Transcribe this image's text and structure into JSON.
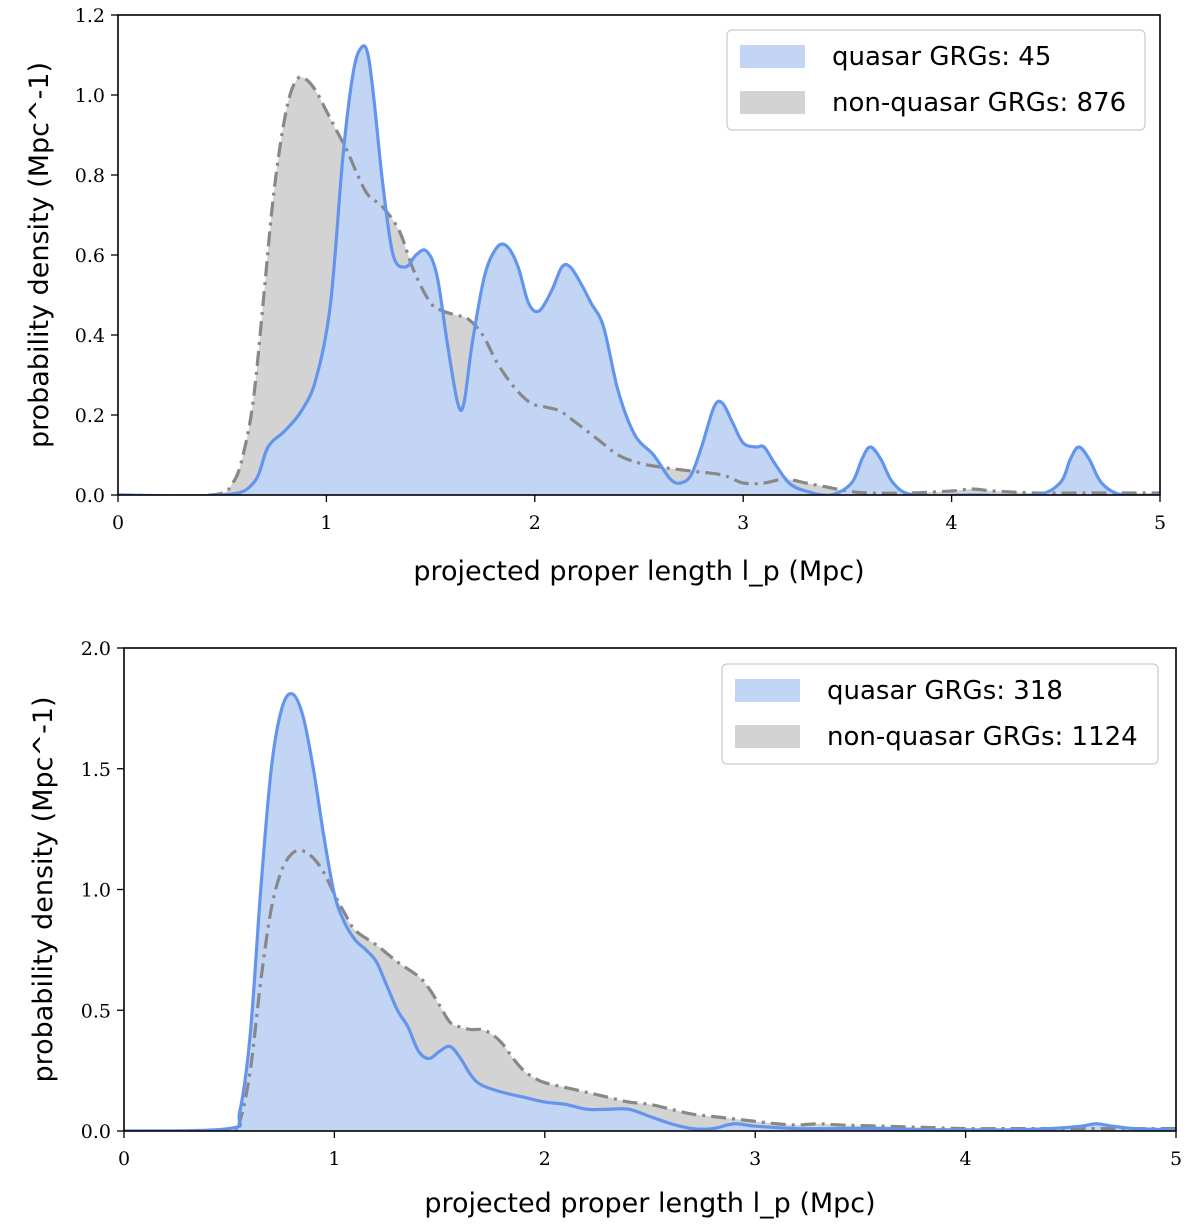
{
  "chart_data": [
    {
      "type": "area",
      "xlabel": "projected proper length l_p (Mpc)",
      "ylabel": "probability density (Mpc^-1)",
      "xlim": [
        0,
        5
      ],
      "ylim": [
        0,
        1.2
      ],
      "xticks": [
        "0",
        "1",
        "2",
        "3",
        "4",
        "5"
      ],
      "yticks": [
        "0.0",
        "0.2",
        "0.4",
        "0.6",
        "0.8",
        "1.0",
        "1.2"
      ],
      "grid": false,
      "legend_position": "top-right",
      "series": [
        {
          "name": "quasar GRGs: 45",
          "color": "#6495ed",
          "fill": "#c3d5f5",
          "line_style": "solid",
          "x": [
            0,
            0.5,
            0.65,
            0.72,
            0.8,
            0.88,
            0.95,
            1.02,
            1.08,
            1.13,
            1.17,
            1.2,
            1.23,
            1.27,
            1.32,
            1.38,
            1.43,
            1.48,
            1.53,
            1.58,
            1.63,
            1.66,
            1.7,
            1.76,
            1.82,
            1.87,
            1.92,
            1.97,
            2.02,
            2.08,
            2.13,
            2.17,
            2.22,
            2.27,
            2.33,
            2.4,
            2.48,
            2.57,
            2.65,
            2.7,
            2.75,
            2.8,
            2.86,
            2.9,
            2.95,
            3.0,
            3.06,
            3.1,
            3.15,
            3.22,
            3.3,
            3.42,
            3.52,
            3.57,
            3.61,
            3.66,
            3.72,
            3.82,
            4.1,
            4.4,
            4.52,
            4.57,
            4.61,
            4.66,
            4.72,
            4.82,
            5.0
          ],
          "y": [
            0,
            0.0,
            0.03,
            0.12,
            0.16,
            0.21,
            0.29,
            0.48,
            0.85,
            1.06,
            1.12,
            1.1,
            0.98,
            0.78,
            0.6,
            0.57,
            0.6,
            0.61,
            0.55,
            0.38,
            0.23,
            0.23,
            0.38,
            0.55,
            0.62,
            0.62,
            0.57,
            0.48,
            0.46,
            0.51,
            0.57,
            0.57,
            0.53,
            0.48,
            0.42,
            0.26,
            0.15,
            0.1,
            0.04,
            0.03,
            0.05,
            0.12,
            0.22,
            0.23,
            0.18,
            0.13,
            0.12,
            0.12,
            0.08,
            0.03,
            0.01,
            0.0,
            0.03,
            0.09,
            0.12,
            0.09,
            0.03,
            0.0,
            0.0,
            0.0,
            0.03,
            0.09,
            0.12,
            0.09,
            0.03,
            0.0,
            0.0
          ]
        },
        {
          "name": "non-quasar GRGs: 876",
          "color": "#888888",
          "fill": "#d3d3d3",
          "line_style": "dash-dot",
          "x": [
            0,
            0.45,
            0.55,
            0.6,
            0.65,
            0.7,
            0.74,
            0.78,
            0.82,
            0.86,
            0.9,
            0.95,
            1.0,
            1.05,
            1.1,
            1.15,
            1.2,
            1.27,
            1.35,
            1.42,
            1.5,
            1.56,
            1.62,
            1.68,
            1.75,
            1.82,
            1.9,
            1.98,
            2.05,
            2.12,
            2.2,
            2.3,
            2.4,
            2.5,
            2.6,
            2.75,
            2.9,
            3.0,
            3.1,
            3.2,
            3.3,
            3.4,
            3.5,
            3.6,
            3.8,
            4.0,
            4.1,
            4.2,
            4.4,
            4.6,
            5.0
          ],
          "y": [
            0,
            0.0,
            0.03,
            0.1,
            0.24,
            0.5,
            0.72,
            0.88,
            0.99,
            1.04,
            1.04,
            1.01,
            0.96,
            0.91,
            0.86,
            0.8,
            0.75,
            0.72,
            0.66,
            0.56,
            0.48,
            0.46,
            0.45,
            0.44,
            0.4,
            0.33,
            0.27,
            0.23,
            0.22,
            0.21,
            0.18,
            0.14,
            0.1,
            0.08,
            0.07,
            0.06,
            0.05,
            0.03,
            0.03,
            0.04,
            0.03,
            0.02,
            0.01,
            0.005,
            0.005,
            0.01,
            0.015,
            0.01,
            0.005,
            0.005,
            0.005
          ]
        }
      ]
    },
    {
      "type": "area",
      "xlabel": "projected proper length l_p (Mpc)",
      "ylabel": "probability density (Mpc^-1)",
      "xlim": [
        0,
        5
      ],
      "ylim": [
        0,
        2.0
      ],
      "xticks": [
        "0",
        "1",
        "2",
        "3",
        "4",
        "5"
      ],
      "yticks": [
        "0.0",
        "0.5",
        "1.0",
        "1.5",
        "2.0"
      ],
      "grid": false,
      "legend_position": "top-right",
      "series": [
        {
          "name": "quasar GRGs: 318",
          "color": "#6495ed",
          "fill": "#c3d5f5",
          "line_style": "solid",
          "x": [
            0,
            0.5,
            0.55,
            0.6,
            0.65,
            0.7,
            0.75,
            0.8,
            0.85,
            0.9,
            0.95,
            1.0,
            1.05,
            1.1,
            1.15,
            1.2,
            1.25,
            1.3,
            1.35,
            1.4,
            1.45,
            1.5,
            1.55,
            1.6,
            1.65,
            1.7,
            1.8,
            1.9,
            2.0,
            2.1,
            2.2,
            2.3,
            2.4,
            2.5,
            2.6,
            2.7,
            2.8,
            2.9,
            3.0,
            3.2,
            3.4,
            3.6,
            3.8,
            4.0,
            4.2,
            4.4,
            4.55,
            4.62,
            4.7,
            4.8,
            5.0
          ],
          "y": [
            0,
            0.01,
            0.08,
            0.4,
            1.0,
            1.5,
            1.75,
            1.81,
            1.72,
            1.5,
            1.22,
            0.98,
            0.86,
            0.79,
            0.75,
            0.7,
            0.6,
            0.5,
            0.43,
            0.33,
            0.3,
            0.33,
            0.35,
            0.3,
            0.23,
            0.19,
            0.16,
            0.14,
            0.12,
            0.11,
            0.09,
            0.09,
            0.09,
            0.06,
            0.03,
            0.01,
            0.01,
            0.03,
            0.02,
            0.01,
            0.01,
            0.01,
            0.005,
            0.005,
            0.005,
            0.01,
            0.02,
            0.03,
            0.02,
            0.01,
            0.005
          ]
        },
        {
          "name": "non-quasar GRGs: 1124",
          "color": "#888888",
          "fill": "#d3d3d3",
          "line_style": "dash-dot",
          "x": [
            0,
            0.5,
            0.55,
            0.6,
            0.65,
            0.7,
            0.75,
            0.8,
            0.85,
            0.9,
            0.95,
            1.0,
            1.05,
            1.1,
            1.2,
            1.3,
            1.4,
            1.45,
            1.5,
            1.55,
            1.6,
            1.65,
            1.7,
            1.75,
            1.8,
            1.85,
            1.9,
            1.95,
            2.0,
            2.1,
            2.2,
            2.3,
            2.4,
            2.5,
            2.6,
            2.7,
            2.8,
            2.9,
            3.0,
            3.1,
            3.2,
            3.3,
            3.4,
            3.6,
            3.8,
            4.0,
            4.2,
            4.4,
            4.6,
            4.8,
            5.0
          ],
          "y": [
            0,
            0.0,
            0.04,
            0.25,
            0.62,
            0.92,
            1.08,
            1.15,
            1.16,
            1.13,
            1.07,
            0.98,
            0.9,
            0.83,
            0.77,
            0.7,
            0.64,
            0.59,
            0.52,
            0.45,
            0.43,
            0.42,
            0.42,
            0.4,
            0.36,
            0.3,
            0.25,
            0.22,
            0.2,
            0.18,
            0.16,
            0.14,
            0.12,
            0.11,
            0.09,
            0.07,
            0.06,
            0.05,
            0.04,
            0.03,
            0.025,
            0.03,
            0.025,
            0.02,
            0.015,
            0.01,
            0.01,
            0.01,
            0.01,
            0.01,
            0.01
          ]
        }
      ]
    }
  ]
}
